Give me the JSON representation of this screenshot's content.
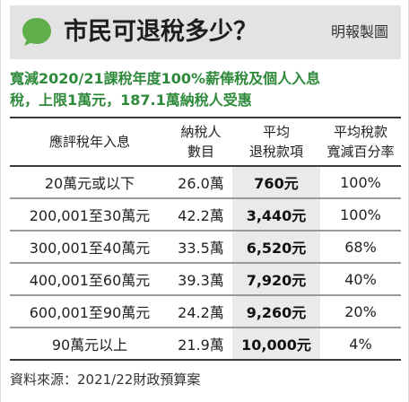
{
  "header": {
    "title": "市民可退稅多少？",
    "credit": "明報製圖",
    "icon": "speech-bubble-icon",
    "icon_color": "#5fae4b",
    "band_color": "#e3e3e3"
  },
  "subtitle": {
    "line1": "寬減2020/21課稅年度100%薪俸稅及個人入息",
    "line2": "稅，上限1萬元，187.1萬納稅人受惠",
    "color": "#2e8a3a"
  },
  "table": {
    "headers": [
      {
        "line1": "應評稅年入息",
        "line2": ""
      },
      {
        "line1": "納稅人",
        "line2": "數目"
      },
      {
        "line1": "平均",
        "line2": "退稅款項"
      },
      {
        "line1": "平均稅款",
        "line2": "寬減百分率"
      }
    ],
    "rows": [
      {
        "income": "20萬元或以下",
        "taxpayers": "26.0萬",
        "refund": "760元",
        "rate": "100%"
      },
      {
        "income": "200,001至30萬元",
        "taxpayers": "42.2萬",
        "refund": "3,440元",
        "rate": "100%"
      },
      {
        "income": "300,001至40萬元",
        "taxpayers": "33.5萬",
        "refund": "6,520元",
        "rate": "68%"
      },
      {
        "income": "400,001至60萬元",
        "taxpayers": "39.3萬",
        "refund": "7,920元",
        "rate": "40%"
      },
      {
        "income": "600,001至90萬元",
        "taxpayers": "24.2萬",
        "refund": "9,260元",
        "rate": "20%"
      },
      {
        "income": "90萬元以上",
        "taxpayers": "21.9萬",
        "refund": "10,000元",
        "rate": "4%"
      }
    ]
  },
  "source": "資料來源：2021/22財政預算案"
}
